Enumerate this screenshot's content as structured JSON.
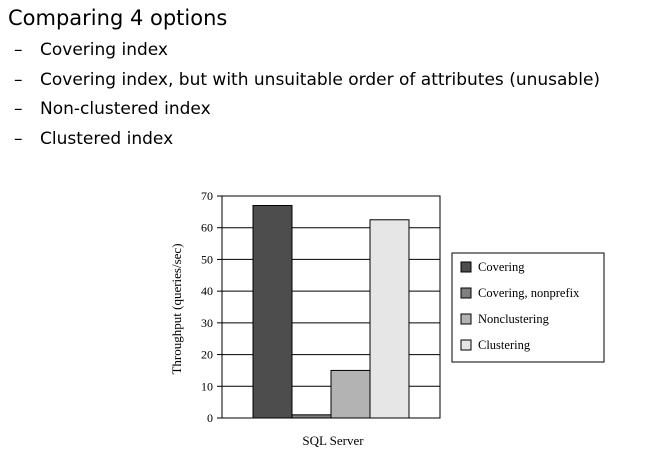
{
  "slide": {
    "title": "Comparing 4 options",
    "bullets": [
      "Covering index",
      "Covering index, but with unsuitable order of attributes (unusable)",
      "Non-clustered index",
      "Clustered index"
    ],
    "bullet_marker": "–"
  },
  "chart_data": {
    "type": "bar",
    "categories": [
      "SQL Server"
    ],
    "series": [
      {
        "name": "Covering",
        "values": [
          67
        ],
        "color": "#4d4d4d"
      },
      {
        "name": "Covering, nonprefix",
        "values": [
          1
        ],
        "color": "#7f7f7f"
      },
      {
        "name": "Nonclustering",
        "values": [
          15
        ],
        "color": "#b3b3b3"
      },
      {
        "name": "Clustering",
        "values": [
          62.5
        ],
        "color": "#e6e6e6"
      }
    ],
    "ylabel": "Throughput (queries/sec)",
    "xlabel": "",
    "ylim": [
      0,
      70
    ],
    "yticks": [
      0,
      10,
      20,
      30,
      40,
      50,
      60,
      70
    ],
    "grid": true,
    "legend": "right"
  }
}
